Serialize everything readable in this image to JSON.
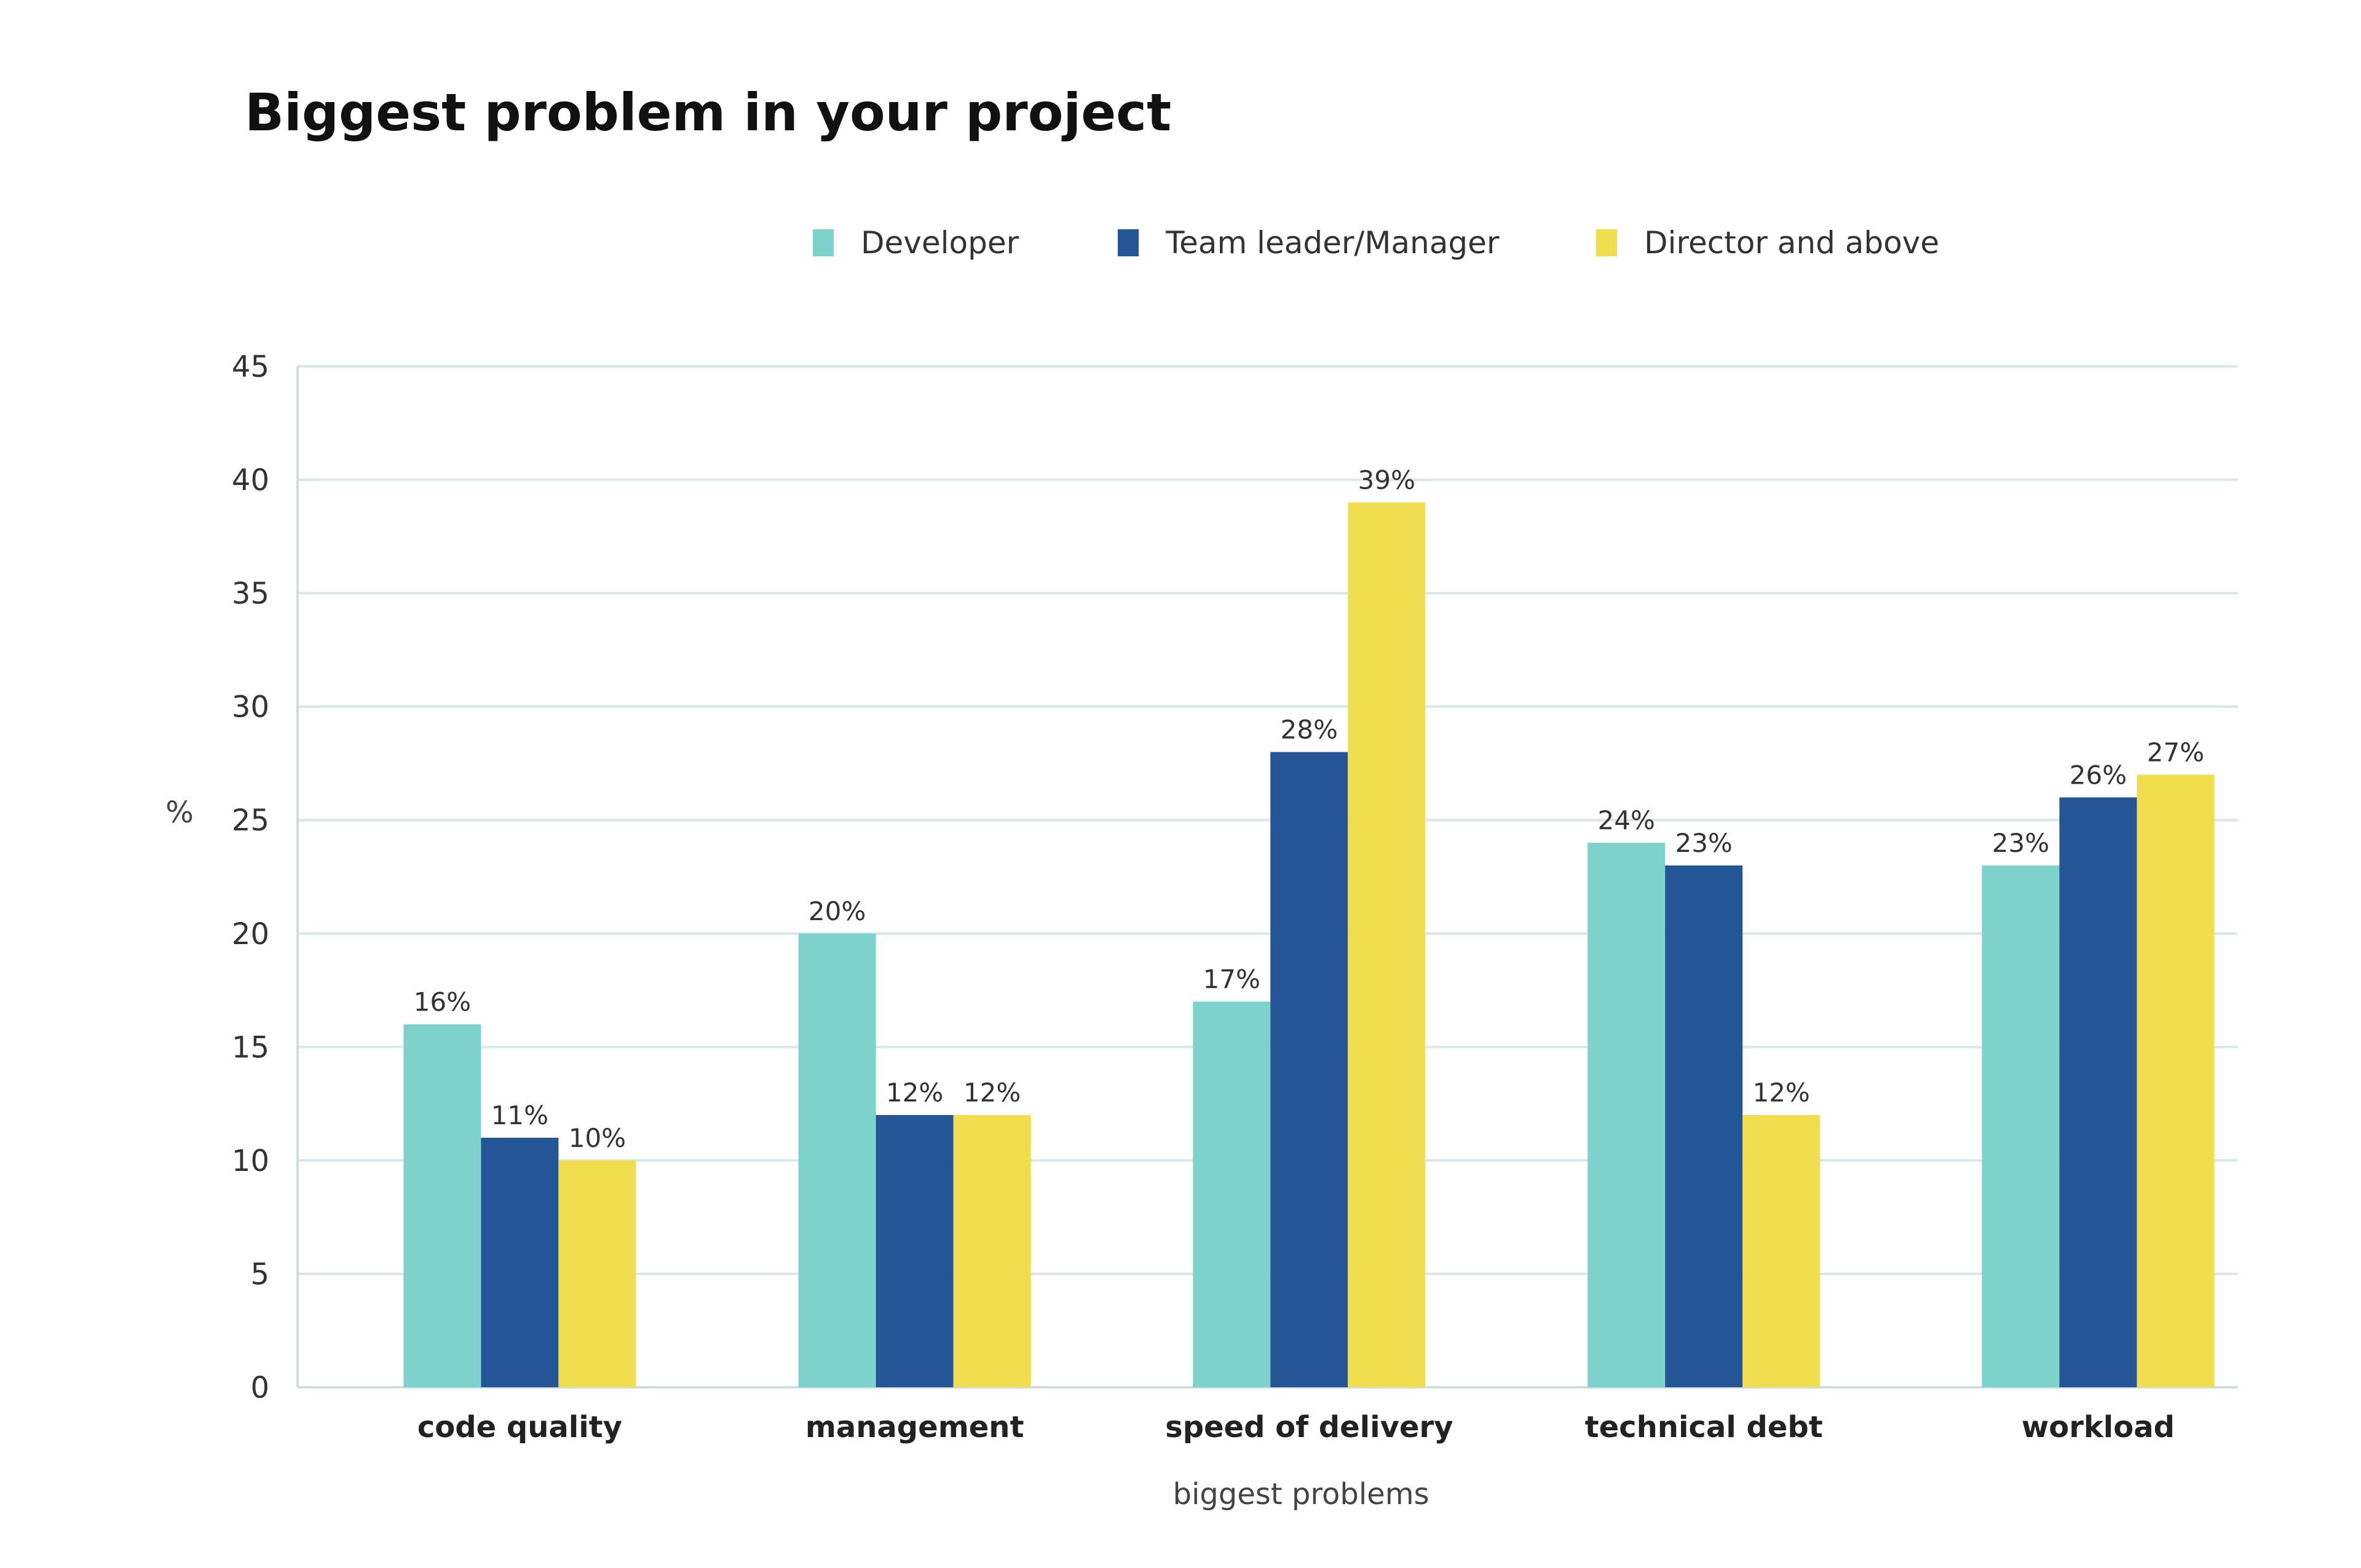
{
  "title": "Biggest problem in your project",
  "chart_data": {
    "type": "bar",
    "title": "Biggest problem in your project",
    "xlabel": "biggest problems",
    "ylabel": "%",
    "ylim": [
      0,
      45
    ],
    "yticks": [
      0,
      5,
      10,
      15,
      20,
      25,
      30,
      35,
      40,
      45
    ],
    "grid": true,
    "legend_position": "top-center",
    "categories": [
      "code quality",
      "management",
      "speed of delivery",
      "technical debt",
      "workload"
    ],
    "series": [
      {
        "name": "Developer",
        "color": "#7dd3cc",
        "values": [
          16,
          20,
          17,
          24,
          23
        ],
        "labels": [
          "16%",
          "20%",
          "17%",
          "24%",
          "23%"
        ]
      },
      {
        "name": "Team leader/Manager",
        "color": "#245596",
        "values": [
          11,
          12,
          28,
          23,
          26
        ],
        "labels": [
          "11%",
          "12%",
          "28%",
          "23%",
          "26%"
        ]
      },
      {
        "name": "Director and above",
        "color": "#f1de4f",
        "values": [
          10,
          12,
          39,
          12,
          27
        ],
        "labels": [
          "10%",
          "12%",
          "39%",
          "12%",
          "27%"
        ]
      }
    ]
  }
}
